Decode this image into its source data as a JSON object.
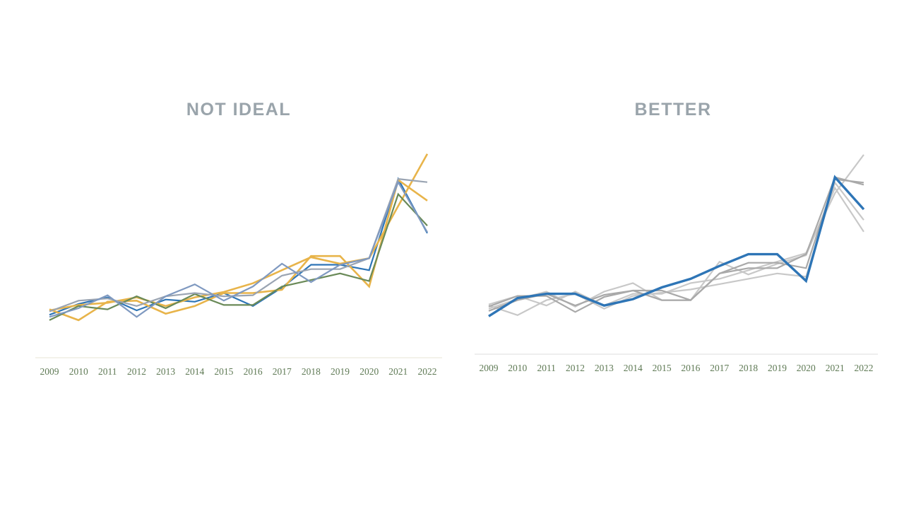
{
  "panels": {
    "left": {
      "title": "NOT IDEAL"
    },
    "right": {
      "title": "BETTER"
    }
  },
  "chart_data": [
    {
      "type": "line",
      "title": "NOT IDEAL",
      "x": [
        "2009",
        "2010",
        "2011",
        "2012",
        "2013",
        "2014",
        "2015",
        "2016",
        "2017",
        "2018",
        "2019",
        "2020",
        "2021",
        "2022"
      ],
      "ylim": [
        0,
        16
      ],
      "legend": "none",
      "grid": false,
      "series": [
        {
          "color": "#2e75b6",
          "width": 2.2,
          "values": [
            2.0,
            3.0,
            3.6,
            2.4,
            3.4,
            3.2,
            4.0,
            2.8,
            4.5,
            6.6,
            6.6,
            6.1,
            14.5,
            9.5
          ]
        },
        {
          "color": "#e8b44a",
          "width": 2.6,
          "values": [
            2.5,
            1.5,
            3.2,
            3.3,
            2.1,
            2.8,
            4.0,
            4.0,
            4.3,
            7.4,
            7.4,
            4.6,
            14.4,
            12.5
          ]
        },
        {
          "color": "#e8b44a",
          "width": 2.6,
          "values": [
            2.4,
            2.9,
            3.1,
            3.6,
            2.8,
            3.6,
            4.1,
            4.9,
            6.1,
            7.3,
            6.7,
            7.2,
            12.0,
            16.8
          ]
        },
        {
          "color": "#6a8a58",
          "width": 2.2,
          "values": [
            1.5,
            2.8,
            2.5,
            3.7,
            2.6,
            3.9,
            2.9,
            2.9,
            4.6,
            5.2,
            5.8,
            5.1,
            13.1,
            10.2
          ]
        },
        {
          "color": "#9aa4b2",
          "width": 2.2,
          "values": [
            2.3,
            3.3,
            3.5,
            2.8,
            3.7,
            4.0,
            3.7,
            3.8,
            5.6,
            6.2,
            6.2,
            7.2,
            14.5,
            14.2
          ]
        },
        {
          "color": "#7f99c0",
          "width": 2.2,
          "values": [
            1.8,
            2.6,
            3.8,
            1.8,
            3.7,
            4.8,
            3.3,
            4.6,
            6.7,
            5.0,
            6.6,
            7.2,
            14.2,
            9.6
          ]
        }
      ]
    },
    {
      "type": "line",
      "title": "BETTER",
      "x": [
        "2009",
        "2010",
        "2011",
        "2012",
        "2013",
        "2014",
        "2015",
        "2016",
        "2017",
        "2018",
        "2019",
        "2020",
        "2021",
        "2022"
      ],
      "ylim": [
        0,
        16
      ],
      "legend": "none",
      "grid": false,
      "series": [
        {
          "color": "#c8c8c8",
          "width": 2.2,
          "values": [
            2.5,
            1.6,
            3.0,
            3.6,
            2.2,
            3.4,
            3.7,
            4.0,
            4.5,
            5.0,
            5.5,
            5.2,
            14.0,
            10.5
          ]
        },
        {
          "color": "#c8c8c8",
          "width": 2.2,
          "values": [
            2.2,
            3.1,
            3.8,
            2.4,
            3.8,
            4.6,
            3.0,
            3.0,
            6.6,
            5.4,
            6.4,
            7.2,
            13.5,
            9.4
          ]
        },
        {
          "color": "#c8c8c8",
          "width": 2.2,
          "values": [
            2.6,
            3.4,
            2.5,
            3.8,
            2.5,
            3.6,
            3.6,
            4.6,
            5.0,
            5.8,
            6.6,
            7.4,
            13.0,
            16.6
          ]
        },
        {
          "color": "#a9a9a9",
          "width": 2.2,
          "values": [
            2.4,
            3.4,
            3.4,
            1.9,
            3.3,
            3.9,
            3.9,
            3.0,
            5.5,
            6.5,
            6.5,
            6.0,
            14.3,
            14.0
          ]
        },
        {
          "color": "#a9a9a9",
          "width": 2.2,
          "values": [
            2.0,
            3.0,
            3.6,
            2.5,
            3.5,
            3.9,
            3.0,
            3.0,
            5.5,
            6.0,
            6.0,
            7.3,
            14.5,
            13.8
          ]
        },
        {
          "color": "#2e75b6",
          "width": 3.4,
          "values": [
            1.5,
            3.2,
            3.6,
            3.6,
            2.5,
            3.1,
            4.2,
            5.0,
            6.2,
            7.3,
            7.3,
            4.8,
            14.5,
            11.5
          ]
        }
      ]
    }
  ]
}
